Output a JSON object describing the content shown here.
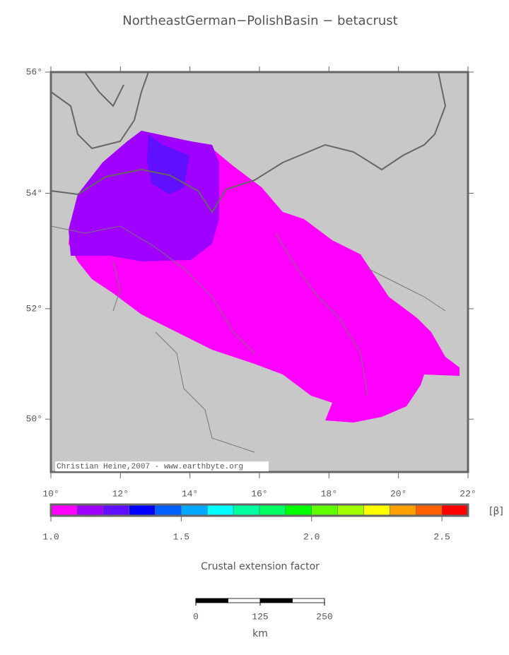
{
  "map": {
    "title": "NortheastGerman−PolishBasin − betacrust",
    "lonlim": [
      10,
      22
    ],
    "latlim": [
      49,
      56
    ],
    "lon_ticks": [
      {
        "value": 10,
        "label": "10°"
      },
      {
        "value": 12,
        "label": "12°"
      },
      {
        "value": 14,
        "label": "14°"
      },
      {
        "value": 16,
        "label": "16°"
      },
      {
        "value": 18,
        "label": "18°"
      },
      {
        "value": 20,
        "label": "20°"
      },
      {
        "value": 22,
        "label": "22°"
      }
    ],
    "lat_ticks": [
      {
        "value": 50,
        "label": "50°"
      },
      {
        "value": 52,
        "label": "52°"
      },
      {
        "value": 54,
        "label": "54°"
      },
      {
        "value": 56,
        "label": "56°"
      }
    ],
    "credit": "Christian Heine,2007 - www.earthbyte.org"
  },
  "colorbar": {
    "lim": [
      1.0,
      2.6
    ],
    "colors": [
      "#ff00ff",
      "#a000ff",
      "#6010ff",
      "#0000ff",
      "#0060ff",
      "#00a8ff",
      "#00ffff",
      "#00ffa0",
      "#00ff60",
      "#00ff00",
      "#60ff00",
      "#a0ff00",
      "#ffff00",
      "#ffa000",
      "#ff6000",
      "#ff0000"
    ],
    "ticks": [
      {
        "value": 1.0,
        "label": "1.0"
      },
      {
        "value": 1.5,
        "label": "1.5"
      },
      {
        "value": 2.0,
        "label": "2.0"
      },
      {
        "value": 2.5,
        "label": "2.5"
      }
    ],
    "unit": "[β]",
    "label": "Crustal extension factor"
  },
  "scale_bar": {
    "lim": [
      0,
      250
    ],
    "ticks": [
      0,
      125,
      250
    ],
    "unit": "km"
  }
}
